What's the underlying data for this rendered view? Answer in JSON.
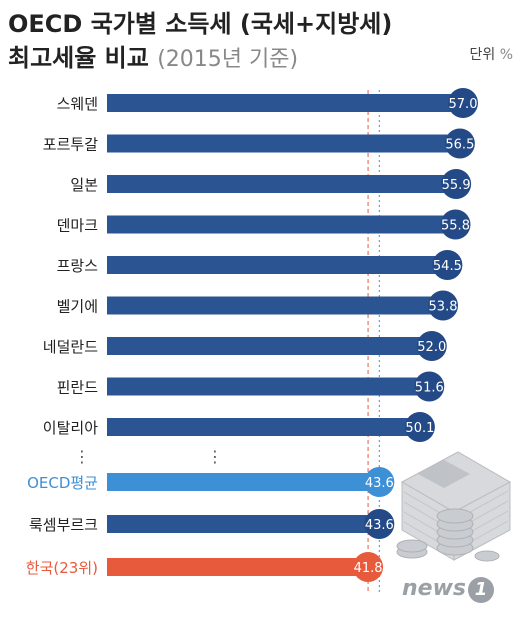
{
  "title": {
    "line1": "OECD 국가별 소득세 (국세+지방세)",
    "line2_main": "최고세율 비교",
    "line2_sub": "(2015년 기준)"
  },
  "unit": {
    "label": "단위",
    "symbol": "%"
  },
  "colors": {
    "bar": "#2b5493",
    "bubble": "#234a86",
    "oecd": "#3d8fd6",
    "korea": "#e85a3c",
    "country_text": "#222222",
    "refline_korea": "#e85a3c",
    "refline_oecd": "#3d8fd6"
  },
  "chart_data": {
    "type": "bar",
    "orientation": "horizontal",
    "categories": [
      "스웨덴",
      "포르투갈",
      "일본",
      "덴마크",
      "프랑스",
      "벨기에",
      "네덜란드",
      "핀란드",
      "이탈리아",
      "OECD평균",
      "룩셈부르크",
      "한국(23위)"
    ],
    "values": [
      57.0,
      56.5,
      55.9,
      55.8,
      54.5,
      53.8,
      52.0,
      51.6,
      50.1,
      43.6,
      43.6,
      41.8
    ],
    "value_labels": [
      "57.0",
      "56.5",
      "55.9",
      "55.8",
      "54.5",
      "53.8",
      "52.0",
      "51.6",
      "50.1",
      "43.6",
      "43.6",
      "41.8"
    ],
    "highlight": {
      "OECD평균": "oecd",
      "한국(23위)": "korea"
    },
    "gap_after_index": 8,
    "gap_marker": "⋮",
    "reference_lines": [
      {
        "value": 41.8,
        "style": "dashed",
        "color": "korea"
      },
      {
        "value": 43.6,
        "style": "dotted",
        "color": "oecd"
      }
    ],
    "title": "OECD 국가별 소득세 (국세+지방세) 최고세율 비교 (2015년 기준)",
    "unit": "%",
    "xlim": [
      0,
      57.0
    ]
  },
  "logo": {
    "text": "news",
    "mark": "1"
  }
}
